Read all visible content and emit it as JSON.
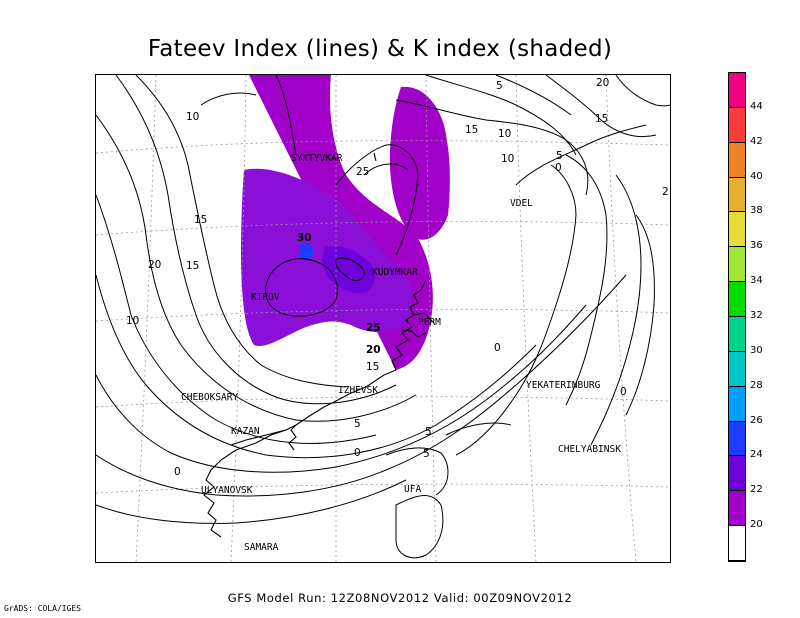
{
  "title": "Fateev Index (lines) & K index (shaded)",
  "footer": "GFS Model Run: 12Z08NOV2012 Valid: 00Z09NOV2012",
  "credit": "GrADS: COLA/IGES",
  "cities": [
    {
      "name": "SYKTYVKAR"
    },
    {
      "name": "KUDYMKAR"
    },
    {
      "name": "KIROV"
    },
    {
      "name": "PERM"
    },
    {
      "name": "VDEL"
    },
    {
      "name": "IZHEVSK"
    },
    {
      "name": "CHEBOKSARY"
    },
    {
      "name": "KAZAN"
    },
    {
      "name": "YEKATERINBURG"
    },
    {
      "name": "CHELYABINSK"
    },
    {
      "name": "ULYANOVSK"
    },
    {
      "name": "UFA"
    },
    {
      "name": "SAMARA"
    }
  ],
  "contour_labels": [
    "10",
    "5",
    "20",
    "15",
    "15",
    "10",
    "10",
    "5",
    "2",
    "25",
    "0",
    "15",
    "20",
    "15",
    "10",
    "30",
    "25",
    "20",
    "15",
    "0",
    "0",
    "5",
    "0",
    "5",
    "0",
    "5"
  ],
  "legend": {
    "levels": [
      "20",
      "22",
      "24",
      "26",
      "28",
      "30",
      "32",
      "34",
      "36",
      "38",
      "40",
      "42",
      "44"
    ],
    "colors": [
      "#ffffff",
      "#a000c8",
      "#6e00dc",
      "#1e3cff",
      "#00a0ff",
      "#00c8c8",
      "#00d28c",
      "#00dc00",
      "#a0e632",
      "#e6dc32",
      "#e6af2d",
      "#f08228",
      "#fa3c3c",
      "#f00082"
    ]
  },
  "shading_colors": {
    "k20": "#a000c8",
    "k22": "#8a10d8",
    "k24": "#6e00dc",
    "k26": "#1e3cff"
  }
}
